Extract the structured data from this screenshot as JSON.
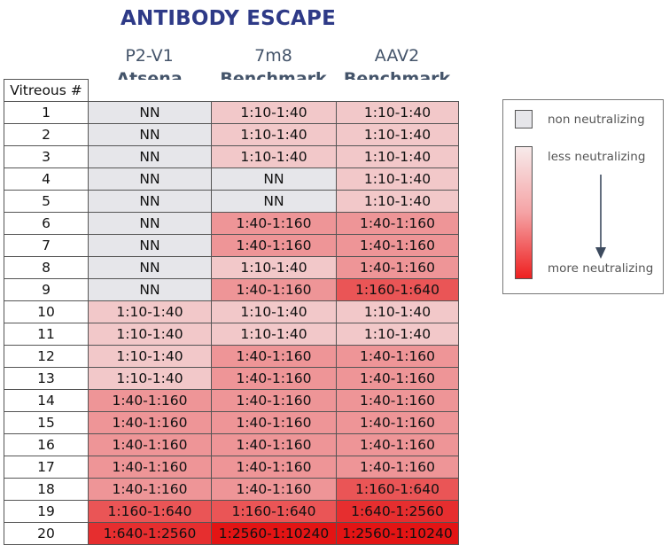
{
  "title": "ANTIBODY ESCAPE",
  "chart_data": {
    "type": "table",
    "row_header": "Vitreous #",
    "columns": [
      {
        "line1": "P2-V1",
        "line2": "Atsena"
      },
      {
        "line1": "7m8",
        "line2": "Benchmark"
      },
      {
        "line1": "AAV2",
        "line2": "Benchmark"
      }
    ],
    "rows": [
      {
        "id": "1",
        "values": [
          "NN",
          "1:10-1:40",
          "1:10-1:40"
        ]
      },
      {
        "id": "2",
        "values": [
          "NN",
          "1:10-1:40",
          "1:10-1:40"
        ]
      },
      {
        "id": "3",
        "values": [
          "NN",
          "1:10-1:40",
          "1:10-1:40"
        ]
      },
      {
        "id": "4",
        "values": [
          "NN",
          "NN",
          "1:10-1:40"
        ]
      },
      {
        "id": "5",
        "values": [
          "NN",
          "NN",
          "1:10-1:40"
        ]
      },
      {
        "id": "6",
        "values": [
          "NN",
          "1:40-1:160",
          "1:40-1:160"
        ]
      },
      {
        "id": "7",
        "values": [
          "NN",
          "1:40-1:160",
          "1:40-1:160"
        ]
      },
      {
        "id": "8",
        "values": [
          "NN",
          "1:10-1:40",
          "1:40-1:160"
        ]
      },
      {
        "id": "9",
        "values": [
          "NN",
          "1:40-1:160",
          "1:160-1:640"
        ]
      },
      {
        "id": "10",
        "values": [
          "1:10-1:40",
          "1:10-1:40",
          "1:10-1:40"
        ]
      },
      {
        "id": "11",
        "values": [
          "1:10-1:40",
          "1:10-1:40",
          "1:10-1:40"
        ]
      },
      {
        "id": "12",
        "values": [
          "1:10-1:40",
          "1:40-1:160",
          "1:40-1:160"
        ]
      },
      {
        "id": "13",
        "values": [
          "1:10-1:40",
          "1:40-1:160",
          "1:40-1:160"
        ]
      },
      {
        "id": "14",
        "values": [
          "1:40-1:160",
          "1:40-1:160",
          "1:40-1:160"
        ]
      },
      {
        "id": "15",
        "values": [
          "1:40-1:160",
          "1:40-1:160",
          "1:40-1:160"
        ]
      },
      {
        "id": "16",
        "values": [
          "1:40-1:160",
          "1:40-1:160",
          "1:40-1:160"
        ]
      },
      {
        "id": "17",
        "values": [
          "1:40-1:160",
          "1:40-1:160",
          "1:40-1:160"
        ]
      },
      {
        "id": "18",
        "values": [
          "1:40-1:160",
          "1:40-1:160",
          "1:160-1:640"
        ]
      },
      {
        "id": "19",
        "values": [
          "1:160-1:640",
          "1:160-1:640",
          "1:640-1:2560"
        ]
      },
      {
        "id": "20",
        "values": [
          "1:640-1:2560",
          "1:2560-1:10240",
          "1:2560-1:10240"
        ]
      }
    ],
    "color_scale": {
      "NN": "#e6e6ea",
      "1:10-1:40": "#f2c8c9",
      "1:40-1:160": "#ee9597",
      "1:160-1:640": "#ea5556",
      "1:640-1:2560": "#e62e2f",
      "1:2560-1:10240": "#e31414"
    }
  },
  "legend": {
    "non_neutralizing": "non neutralizing",
    "less_neutralizing": "less neutralizing",
    "more_neutralizing": "more neutralizing"
  }
}
